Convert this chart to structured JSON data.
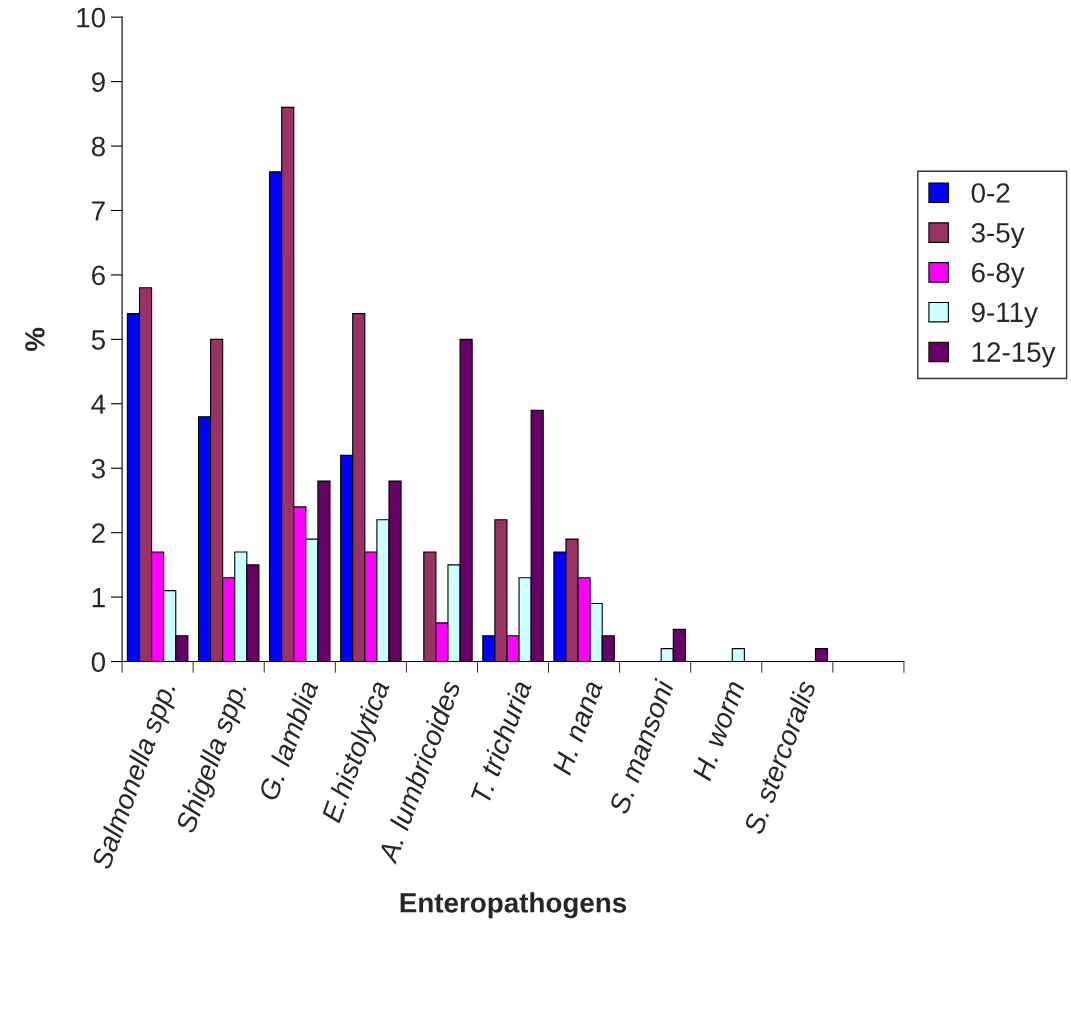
{
  "chart_data": {
    "type": "bar",
    "xlabel": "Enteropathogens",
    "ylabel": "%",
    "categories": [
      "Salmonella spp.",
      "Shigella spp.",
      "G. lamblia",
      "E.histolytica",
      "A. lumbricoides",
      "T. trichuria",
      "H. nana",
      "S. mansoni",
      "H. worm",
      "S. stercoralis",
      null
    ],
    "series": [
      {
        "name": "0-2",
        "color": "#0000ff",
        "values": [
          5.4,
          3.8,
          7.6,
          3.2,
          0,
          0.4,
          1.7,
          0,
          0,
          0,
          null
        ]
      },
      {
        "name": "3-5y",
        "color": "#993366",
        "values": [
          5.8,
          5.0,
          8.6,
          5.4,
          1.7,
          2.2,
          1.9,
          0,
          0,
          0,
          null
        ]
      },
      {
        "name": "6-8y",
        "color": "#ff00ff",
        "values": [
          1.7,
          1.3,
          2.4,
          1.7,
          0.6,
          0.4,
          1.3,
          0,
          0,
          0,
          null
        ]
      },
      {
        "name": "9-11y",
        "color": "#ccffff",
        "values": [
          1.1,
          1.7,
          1.9,
          2.2,
          1.5,
          1.3,
          0.9,
          0.2,
          0.2,
          0,
          null
        ]
      },
      {
        "name": "12-15y",
        "color": "#660066",
        "values": [
          0.4,
          1.5,
          2.8,
          2.8,
          5.0,
          3.9,
          0.4,
          0.5,
          0,
          0.2,
          null
        ]
      }
    ],
    "ylim": [
      0,
      10
    ],
    "yticks": [
      0,
      1,
      2,
      3,
      4,
      5,
      6,
      7,
      8,
      9,
      10
    ],
    "grid": false,
    "legend": "right"
  }
}
